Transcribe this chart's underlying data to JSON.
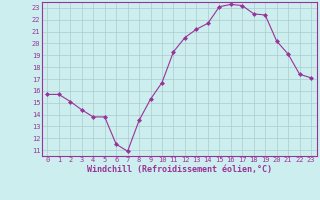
{
  "x": [
    0,
    1,
    2,
    3,
    4,
    5,
    6,
    7,
    8,
    9,
    10,
    11,
    12,
    13,
    14,
    15,
    16,
    17,
    18,
    19,
    20,
    21,
    22,
    23
  ],
  "y": [
    15.7,
    15.7,
    15.1,
    14.4,
    13.8,
    13.8,
    11.5,
    10.9,
    13.5,
    15.3,
    16.7,
    19.3,
    20.5,
    21.2,
    21.7,
    23.1,
    23.3,
    23.2,
    22.5,
    22.4,
    20.2,
    19.1,
    17.4,
    17.1
  ],
  "xlim": [
    -0.5,
    23.5
  ],
  "ylim": [
    10.5,
    23.5
  ],
  "yticks": [
    11,
    12,
    13,
    14,
    15,
    16,
    17,
    18,
    19,
    20,
    21,
    22,
    23
  ],
  "xticks": [
    0,
    1,
    2,
    3,
    4,
    5,
    6,
    7,
    8,
    9,
    10,
    11,
    12,
    13,
    14,
    15,
    16,
    17,
    18,
    19,
    20,
    21,
    22,
    23
  ],
  "xlabel": "Windchill (Refroidissement éolien,°C)",
  "line_color": "#993399",
  "marker": "D",
  "marker_size": 2.0,
  "background_color": "#cceeee",
  "grid_color": "#aacccc",
  "tick_color": "#993399",
  "label_color": "#993399",
  "axis_color": "#993399",
  "tick_fontsize": 5.0,
  "xlabel_fontsize": 6.0
}
